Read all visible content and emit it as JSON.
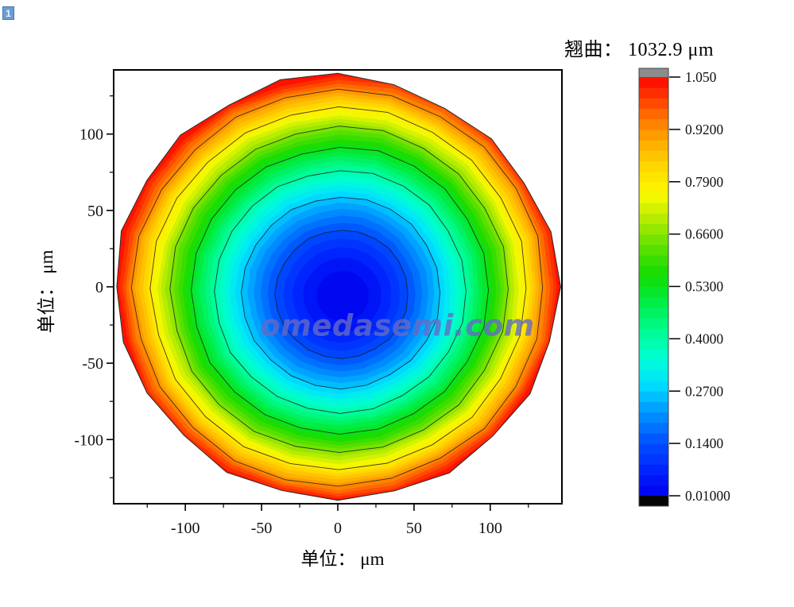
{
  "badge": {
    "label": "1"
  },
  "watermark": {
    "text": "omedasemi.com",
    "color": "#646ac5"
  },
  "chart_data": {
    "type": "heatmap",
    "subtype": "filled_contour_wafer_warpage_map",
    "title": "翘曲： 1032.9 μm",
    "warpage_label": "翘曲：",
    "warpage_value_um": 1032.9,
    "xlabel": "单位： μm",
    "ylabel": "单位： μm",
    "xlim": [
      -147,
      147
    ],
    "ylim": [
      -142,
      142
    ],
    "x_ticks": [
      -100,
      -50,
      0,
      50,
      100
    ],
    "y_ticks": [
      -100,
      -50,
      0,
      50,
      100
    ],
    "x_minor_ticks": [
      -125,
      -75,
      -25,
      25,
      75,
      125
    ],
    "y_minor_ticks": [
      -125,
      -75,
      -25,
      25,
      75,
      125
    ],
    "grid": false,
    "wafer_radius_um": 146,
    "value_min_at_center": 0.01,
    "value_max_at_edge": 1.03,
    "value_profile": "bowl-shaped warpage: v(r) ≈ 0.01 + 1.04·(r/R)^1.72, minimum at center (dark blue), maximum at wafer edge (red)",
    "contour_line_levels": [
      0.14,
      0.27,
      0.4,
      0.53,
      0.66,
      0.79,
      0.92
    ],
    "fill_bands": 40,
    "legend_position": "right colorbar",
    "colorbar": {
      "vmin": 0.01,
      "vmax": 1.05,
      "tick_values": [
        1.05,
        0.92,
        0.79,
        0.66,
        0.53,
        0.4,
        0.27,
        0.14,
        0.01
      ],
      "tick_labels": [
        "1.050",
        "0.9200",
        "0.7900",
        "0.6600",
        "0.5300",
        "0.4000",
        "0.2700",
        "0.1400",
        "0.01000"
      ],
      "over_color": "#8c8c8c",
      "under_color": "#050505",
      "colormap": [
        [
          0.0,
          "#0000ee"
        ],
        [
          0.07,
          "#0028ff"
        ],
        [
          0.14,
          "#005aff"
        ],
        [
          0.21,
          "#00a0ff"
        ],
        [
          0.27,
          "#00e1ff"
        ],
        [
          0.33,
          "#00ffd2"
        ],
        [
          0.4,
          "#00fa8c"
        ],
        [
          0.47,
          "#00eb3c"
        ],
        [
          0.53,
          "#14dc00"
        ],
        [
          0.6,
          "#64e100"
        ],
        [
          0.66,
          "#b4eb00"
        ],
        [
          0.72,
          "#fafa00"
        ],
        [
          0.78,
          "#ffdc00"
        ],
        [
          0.84,
          "#ffaf00"
        ],
        [
          0.9,
          "#ff7800"
        ],
        [
          0.95,
          "#ff3c00"
        ],
        [
          1.0,
          "#ff0500"
        ]
      ]
    }
  }
}
